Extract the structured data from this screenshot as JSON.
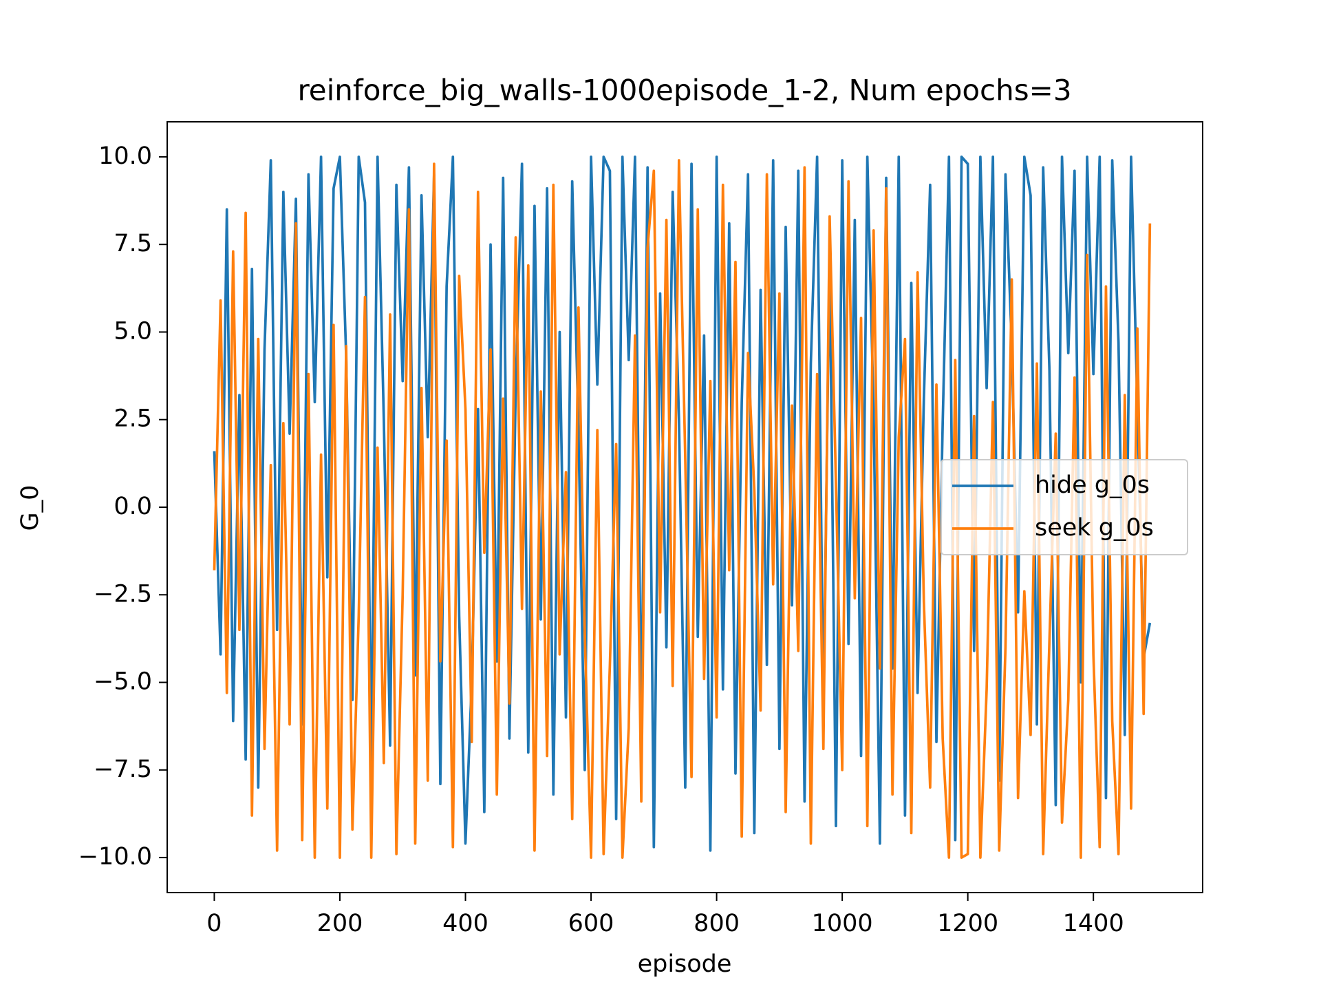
{
  "chart_data": {
    "type": "line",
    "title": "reinforce_big_walls-1000episode_1-2, Num epochs=3",
    "xlabel": "episode",
    "ylabel": "G_0",
    "legend": "center right",
    "xlim": [
      -75,
      1574
    ],
    "ylim": [
      -11,
      11
    ],
    "xticks": [
      0,
      200,
      400,
      600,
      800,
      1000,
      1200,
      1400
    ],
    "yticks": [
      {
        "value": -10,
        "label": "−10.0"
      },
      {
        "value": -7.5,
        "label": "−7.5"
      },
      {
        "value": -5,
        "label": "−5.0"
      },
      {
        "value": -2.5,
        "label": "−2.5"
      },
      {
        "value": 0,
        "label": "0.0"
      },
      {
        "value": 2.5,
        "label": "2.5"
      },
      {
        "value": 5,
        "label": "5.0"
      },
      {
        "value": 7.5,
        "label": "7.5"
      },
      {
        "value": 10,
        "label": "10.0"
      }
    ],
    "x": [
      0,
      10,
      20,
      30,
      40,
      50,
      60,
      70,
      80,
      90,
      100,
      110,
      120,
      130,
      140,
      150,
      160,
      170,
      180,
      190,
      200,
      210,
      220,
      230,
      240,
      250,
      260,
      270,
      280,
      290,
      300,
      310,
      320,
      330,
      340,
      350,
      360,
      370,
      380,
      390,
      400,
      410,
      420,
      430,
      440,
      450,
      460,
      470,
      480,
      490,
      500,
      510,
      520,
      530,
      540,
      550,
      560,
      570,
      580,
      590,
      600,
      610,
      620,
      630,
      640,
      650,
      660,
      670,
      680,
      690,
      700,
      710,
      720,
      730,
      740,
      750,
      760,
      770,
      780,
      790,
      800,
      810,
      820,
      830,
      840,
      850,
      860,
      870,
      880,
      890,
      900,
      910,
      920,
      930,
      940,
      950,
      960,
      970,
      980,
      990,
      1000,
      1010,
      1020,
      1030,
      1040,
      1050,
      1060,
      1070,
      1080,
      1090,
      1100,
      1110,
      1120,
      1130,
      1140,
      1150,
      1160,
      1170,
      1180,
      1190,
      1200,
      1210,
      1220,
      1230,
      1240,
      1250,
      1260,
      1270,
      1280,
      1290,
      1300,
      1310,
      1320,
      1330,
      1340,
      1350,
      1360,
      1370,
      1380,
      1390,
      1400,
      1410,
      1420,
      1430,
      1440,
      1450,
      1460,
      1470,
      1480,
      1490
    ],
    "series": [
      {
        "name": "hide g_0s",
        "color": "#1f77b4",
        "values": [
          1.6,
          -4.2,
          8.5,
          -6.1,
          3.2,
          -7.2,
          6.8,
          -8.0,
          4.5,
          9.9,
          -3.5,
          9.0,
          2.1,
          8.8,
          -6.2,
          9.5,
          3.0,
          10.0,
          -2.0,
          9.1,
          10.0,
          4.3,
          -5.5,
          10.0,
          8.7,
          -7.4,
          10.0,
          2.5,
          -6.8,
          9.2,
          3.6,
          9.7,
          -4.8,
          8.9,
          2.0,
          9.5,
          -7.9,
          6.3,
          10.0,
          -3.1,
          -9.6,
          -5.0,
          2.8,
          -8.7,
          7.5,
          -4.4,
          9.4,
          -6.6,
          3.3,
          9.8,
          -7.0,
          8.6,
          -3.2,
          9.1,
          -8.2,
          5.0,
          -6.0,
          9.3,
          2.2,
          -7.5,
          10.0,
          3.5,
          10.0,
          9.6,
          -8.9,
          10.0,
          4.2,
          10.0,
          -6.4,
          9.7,
          -9.7,
          6.1,
          -4.0,
          9.0,
          2.5,
          -8.0,
          9.8,
          -3.7,
          4.9,
          -9.8,
          10.0,
          -5.2,
          8.1,
          -7.6,
          3.0,
          9.5,
          -9.3,
          6.2,
          -4.5,
          9.9,
          -6.9,
          8.0,
          -2.8,
          9.6,
          -8.4,
          4.1,
          10.0,
          -5.9,
          7.3,
          -9.1,
          9.9,
          -3.9,
          8.2,
          -7.1,
          10.0,
          2.7,
          -9.6,
          9.4,
          -4.6,
          10.0,
          -8.8,
          6.4,
          -5.3,
          3.1,
          9.2,
          -6.7,
          2.4,
          10.0,
          -9.5,
          10.0,
          9.8,
          -4.1,
          10.0,
          3.4,
          10.0,
          -7.8,
          9.5,
          4.6,
          -3.0,
          10.0,
          8.9,
          -6.2,
          9.7,
          3.9,
          -8.5,
          10.0,
          4.4,
          9.6,
          -5.0,
          10.0,
          3.8,
          10.0,
          -8.3,
          9.9,
          4.7,
          -6.5,
          10.0,
          2.9,
          -4.3,
          -3.3
        ]
      },
      {
        "name": "seek g_0s",
        "color": "#ff7f0e",
        "values": [
          -1.8,
          5.9,
          -5.3,
          7.3,
          -3.5,
          8.4,
          -8.8,
          4.8,
          -6.9,
          1.2,
          -9.8,
          2.4,
          -6.2,
          8.1,
          -9.5,
          3.8,
          -10.0,
          1.5,
          -8.6,
          5.2,
          -10.0,
          4.6,
          -9.2,
          -3.1,
          6.0,
          -10.0,
          1.7,
          -7.3,
          5.5,
          -9.9,
          -2.5,
          8.5,
          -9.6,
          3.4,
          -7.8,
          9.8,
          -4.4,
          1.9,
          -9.7,
          6.6,
          2.8,
          -6.7,
          9.0,
          -1.3,
          4.5,
          -8.2,
          3.1,
          -5.6,
          7.7,
          -2.9,
          6.9,
          -9.8,
          3.3,
          -7.1,
          9.2,
          -4.2,
          1.0,
          -8.9,
          5.7,
          -3.6,
          -10.0,
          2.2,
          -9.9,
          -4.5,
          1.8,
          -10.0,
          -6.3,
          4.9,
          -8.4,
          7.4,
          9.6,
          -3.0,
          8.2,
          -5.1,
          9.9,
          1.4,
          -7.7,
          8.5,
          -4.9,
          3.6,
          -6.0,
          9.2,
          -1.8,
          7.0,
          -9.4,
          4.4,
          0.5,
          -5.8,
          9.5,
          -2.2,
          6.1,
          -8.7,
          2.9,
          -4.1,
          9.7,
          -9.6,
          3.8,
          -6.9,
          8.3,
          0.7,
          -7.5,
          9.3,
          -2.6,
          5.4,
          -9.1,
          7.9,
          -4.6,
          9.1,
          -8.2,
          2.0,
          4.8,
          -9.3,
          6.7,
          -2.7,
          -8.0,
          3.5,
          -6.6,
          -10.0,
          4.2,
          -10.0,
          -9.9,
          2.6,
          -10.0,
          -5.2,
          3.0,
          -9.8,
          -4.0,
          6.5,
          -8.3,
          -2.4,
          -6.5,
          4.1,
          -9.9,
          -3.8,
          2.1,
          -9.0,
          -5.5,
          3.7,
          -10.0,
          7.2,
          -4.2,
          -9.7,
          6.3,
          -6.1,
          -9.9,
          3.2,
          -8.6,
          5.1,
          -5.9,
          8.1
        ]
      }
    ]
  }
}
